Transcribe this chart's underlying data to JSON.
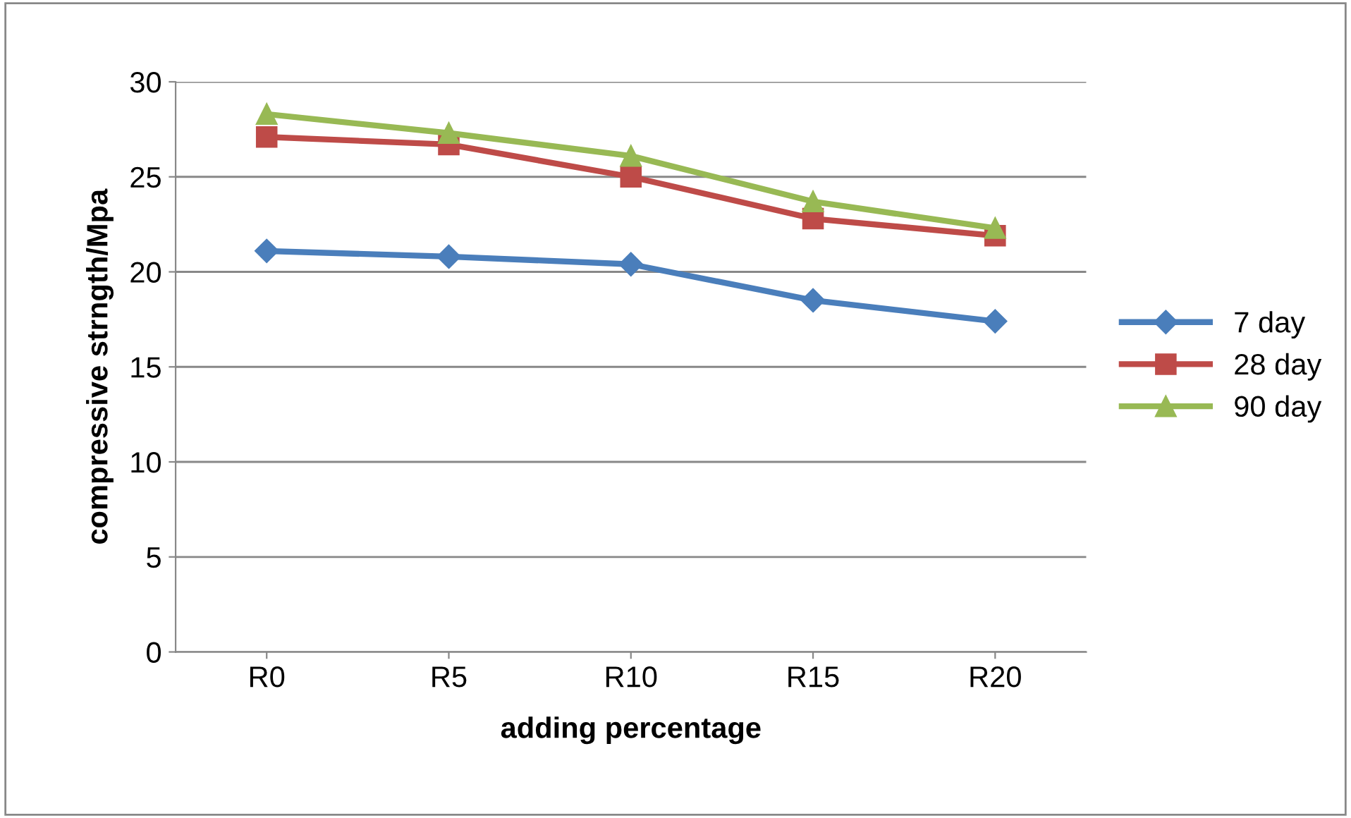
{
  "chart_data": {
    "type": "line",
    "xlabel": "adding percentage",
    "ylabel": "compressive strngth/Mpa",
    "categories": [
      "R0",
      "R5",
      "R10",
      "R15",
      "R20"
    ],
    "series": [
      {
        "name": "7 day",
        "color": "#4a7ebb",
        "marker": "diamond",
        "values": [
          21.1,
          20.8,
          20.4,
          18.5,
          17.4
        ]
      },
      {
        "name": "28 day",
        "color": "#be4b48",
        "marker": "square",
        "values": [
          27.1,
          26.7,
          25.0,
          22.8,
          21.9
        ]
      },
      {
        "name": "90 day",
        "color": "#98b954",
        "marker": "triangle",
        "values": [
          28.3,
          27.3,
          26.1,
          23.7,
          22.3
        ]
      }
    ],
    "ylim": [
      0,
      30
    ],
    "yticks": [
      0,
      5,
      10,
      15,
      20,
      25,
      30
    ],
    "grid": "y",
    "legend": "right"
  }
}
